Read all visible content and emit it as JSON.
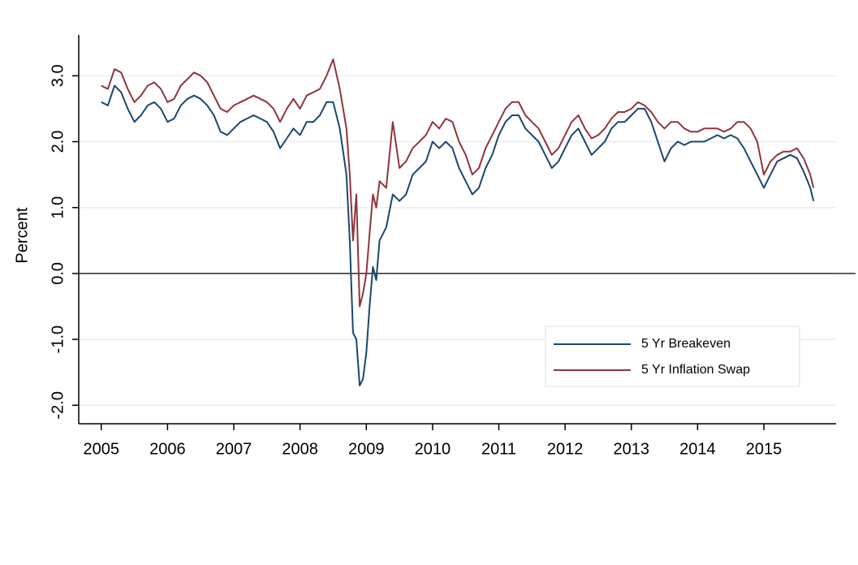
{
  "chart_data": {
    "type": "line",
    "ylabel": "Percent",
    "x": [
      2005.0,
      2005.1,
      2005.2,
      2005.3,
      2005.4,
      2005.5,
      2005.6,
      2005.7,
      2005.8,
      2005.9,
      2006.0,
      2006.1,
      2006.2,
      2006.3,
      2006.4,
      2006.5,
      2006.6,
      2006.7,
      2006.8,
      2006.9,
      2007.0,
      2007.1,
      2007.2,
      2007.3,
      2007.4,
      2007.5,
      2007.6,
      2007.7,
      2007.8,
      2007.9,
      2008.0,
      2008.1,
      2008.2,
      2008.3,
      2008.4,
      2008.5,
      2008.6,
      2008.7,
      2008.75,
      2008.8,
      2008.85,
      2008.9,
      2008.95,
      2009.0,
      2009.05,
      2009.1,
      2009.15,
      2009.2,
      2009.3,
      2009.4,
      2009.5,
      2009.6,
      2009.7,
      2009.8,
      2009.9,
      2010.0,
      2010.1,
      2010.2,
      2010.3,
      2010.4,
      2010.5,
      2010.6,
      2010.7,
      2010.8,
      2010.9,
      2011.0,
      2011.1,
      2011.2,
      2011.3,
      2011.4,
      2011.5,
      2011.6,
      2011.7,
      2011.8,
      2011.9,
      2012.0,
      2012.1,
      2012.2,
      2012.3,
      2012.4,
      2012.5,
      2012.6,
      2012.7,
      2012.8,
      2012.9,
      2013.0,
      2013.1,
      2013.2,
      2013.3,
      2013.4,
      2013.5,
      2013.6,
      2013.7,
      2013.8,
      2013.9,
      2014.0,
      2014.1,
      2014.2,
      2014.3,
      2014.4,
      2014.5,
      2014.6,
      2014.7,
      2014.8,
      2014.9,
      2015.0,
      2015.1,
      2015.2,
      2015.3,
      2015.4,
      2015.5,
      2015.6,
      2015.7,
      2015.75
    ],
    "series": [
      {
        "name": "5 Yr Breakeven",
        "color": "#1a476f",
        "values": [
          2.6,
          2.55,
          2.85,
          2.75,
          2.5,
          2.3,
          2.4,
          2.55,
          2.6,
          2.5,
          2.3,
          2.35,
          2.55,
          2.65,
          2.7,
          2.65,
          2.55,
          2.4,
          2.15,
          2.1,
          2.2,
          2.3,
          2.35,
          2.4,
          2.35,
          2.3,
          2.15,
          1.9,
          2.05,
          2.2,
          2.1,
          2.3,
          2.3,
          2.4,
          2.6,
          2.6,
          2.2,
          1.5,
          0.5,
          -0.9,
          -1.0,
          -1.7,
          -1.6,
          -1.2,
          -0.5,
          0.1,
          -0.1,
          0.5,
          0.7,
          1.2,
          1.1,
          1.2,
          1.5,
          1.6,
          1.7,
          2.0,
          1.9,
          2.0,
          1.9,
          1.6,
          1.4,
          1.2,
          1.3,
          1.6,
          1.8,
          2.1,
          2.3,
          2.4,
          2.4,
          2.2,
          2.1,
          2.0,
          1.8,
          1.6,
          1.7,
          1.9,
          2.1,
          2.2,
          2.0,
          1.8,
          1.9,
          2.0,
          2.2,
          2.3,
          2.3,
          2.4,
          2.5,
          2.5,
          2.3,
          2.0,
          1.7,
          1.9,
          2.0,
          1.95,
          2.0,
          2.0,
          2.0,
          2.05,
          2.1,
          2.05,
          2.1,
          2.05,
          1.9,
          1.7,
          1.5,
          1.3,
          1.5,
          1.7,
          1.75,
          1.8,
          1.75,
          1.55,
          1.3,
          1.1
        ]
      },
      {
        "name": "5 Yr Inflation Swap",
        "color": "#90353b",
        "values": [
          2.85,
          2.8,
          3.1,
          3.05,
          2.8,
          2.6,
          2.7,
          2.85,
          2.9,
          2.8,
          2.6,
          2.65,
          2.85,
          2.95,
          3.05,
          3.0,
          2.9,
          2.7,
          2.5,
          2.45,
          2.55,
          2.6,
          2.65,
          2.7,
          2.65,
          2.6,
          2.5,
          2.3,
          2.5,
          2.65,
          2.5,
          2.7,
          2.75,
          2.8,
          3.0,
          3.25,
          2.8,
          2.2,
          1.5,
          0.5,
          1.2,
          -0.5,
          -0.3,
          0.0,
          0.6,
          1.2,
          1.0,
          1.4,
          1.3,
          2.3,
          1.6,
          1.7,
          1.9,
          2.0,
          2.1,
          2.3,
          2.2,
          2.35,
          2.3,
          2.0,
          1.8,
          1.5,
          1.6,
          1.9,
          2.1,
          2.3,
          2.5,
          2.6,
          2.6,
          2.4,
          2.3,
          2.2,
          2.0,
          1.8,
          1.9,
          2.1,
          2.3,
          2.4,
          2.2,
          2.05,
          2.1,
          2.2,
          2.35,
          2.45,
          2.45,
          2.5,
          2.6,
          2.55,
          2.45,
          2.3,
          2.2,
          2.3,
          2.3,
          2.2,
          2.15,
          2.15,
          2.2,
          2.2,
          2.2,
          2.15,
          2.2,
          2.3,
          2.3,
          2.2,
          2.0,
          1.5,
          1.7,
          1.8,
          1.85,
          1.85,
          1.9,
          1.75,
          1.5,
          1.3
        ]
      }
    ],
    "xlim": [
      2004.66,
      2016.09
    ],
    "xticks": [
      2005,
      2006,
      2007,
      2008,
      2009,
      2010,
      2011,
      2012,
      2013,
      2014,
      2015
    ],
    "ylim": [
      -2.28,
      3.62
    ],
    "yticks": [
      {
        "value": -2,
        "label": "-2.0"
      },
      {
        "value": -1,
        "label": "-1.0"
      },
      {
        "value": 0,
        "label": "0.0"
      },
      {
        "value": 1,
        "label": "1.0"
      },
      {
        "value": 2,
        "label": "2.0"
      },
      {
        "value": 3,
        "label": "3.0"
      }
    ],
    "grid": true,
    "legend": "lower right"
  }
}
